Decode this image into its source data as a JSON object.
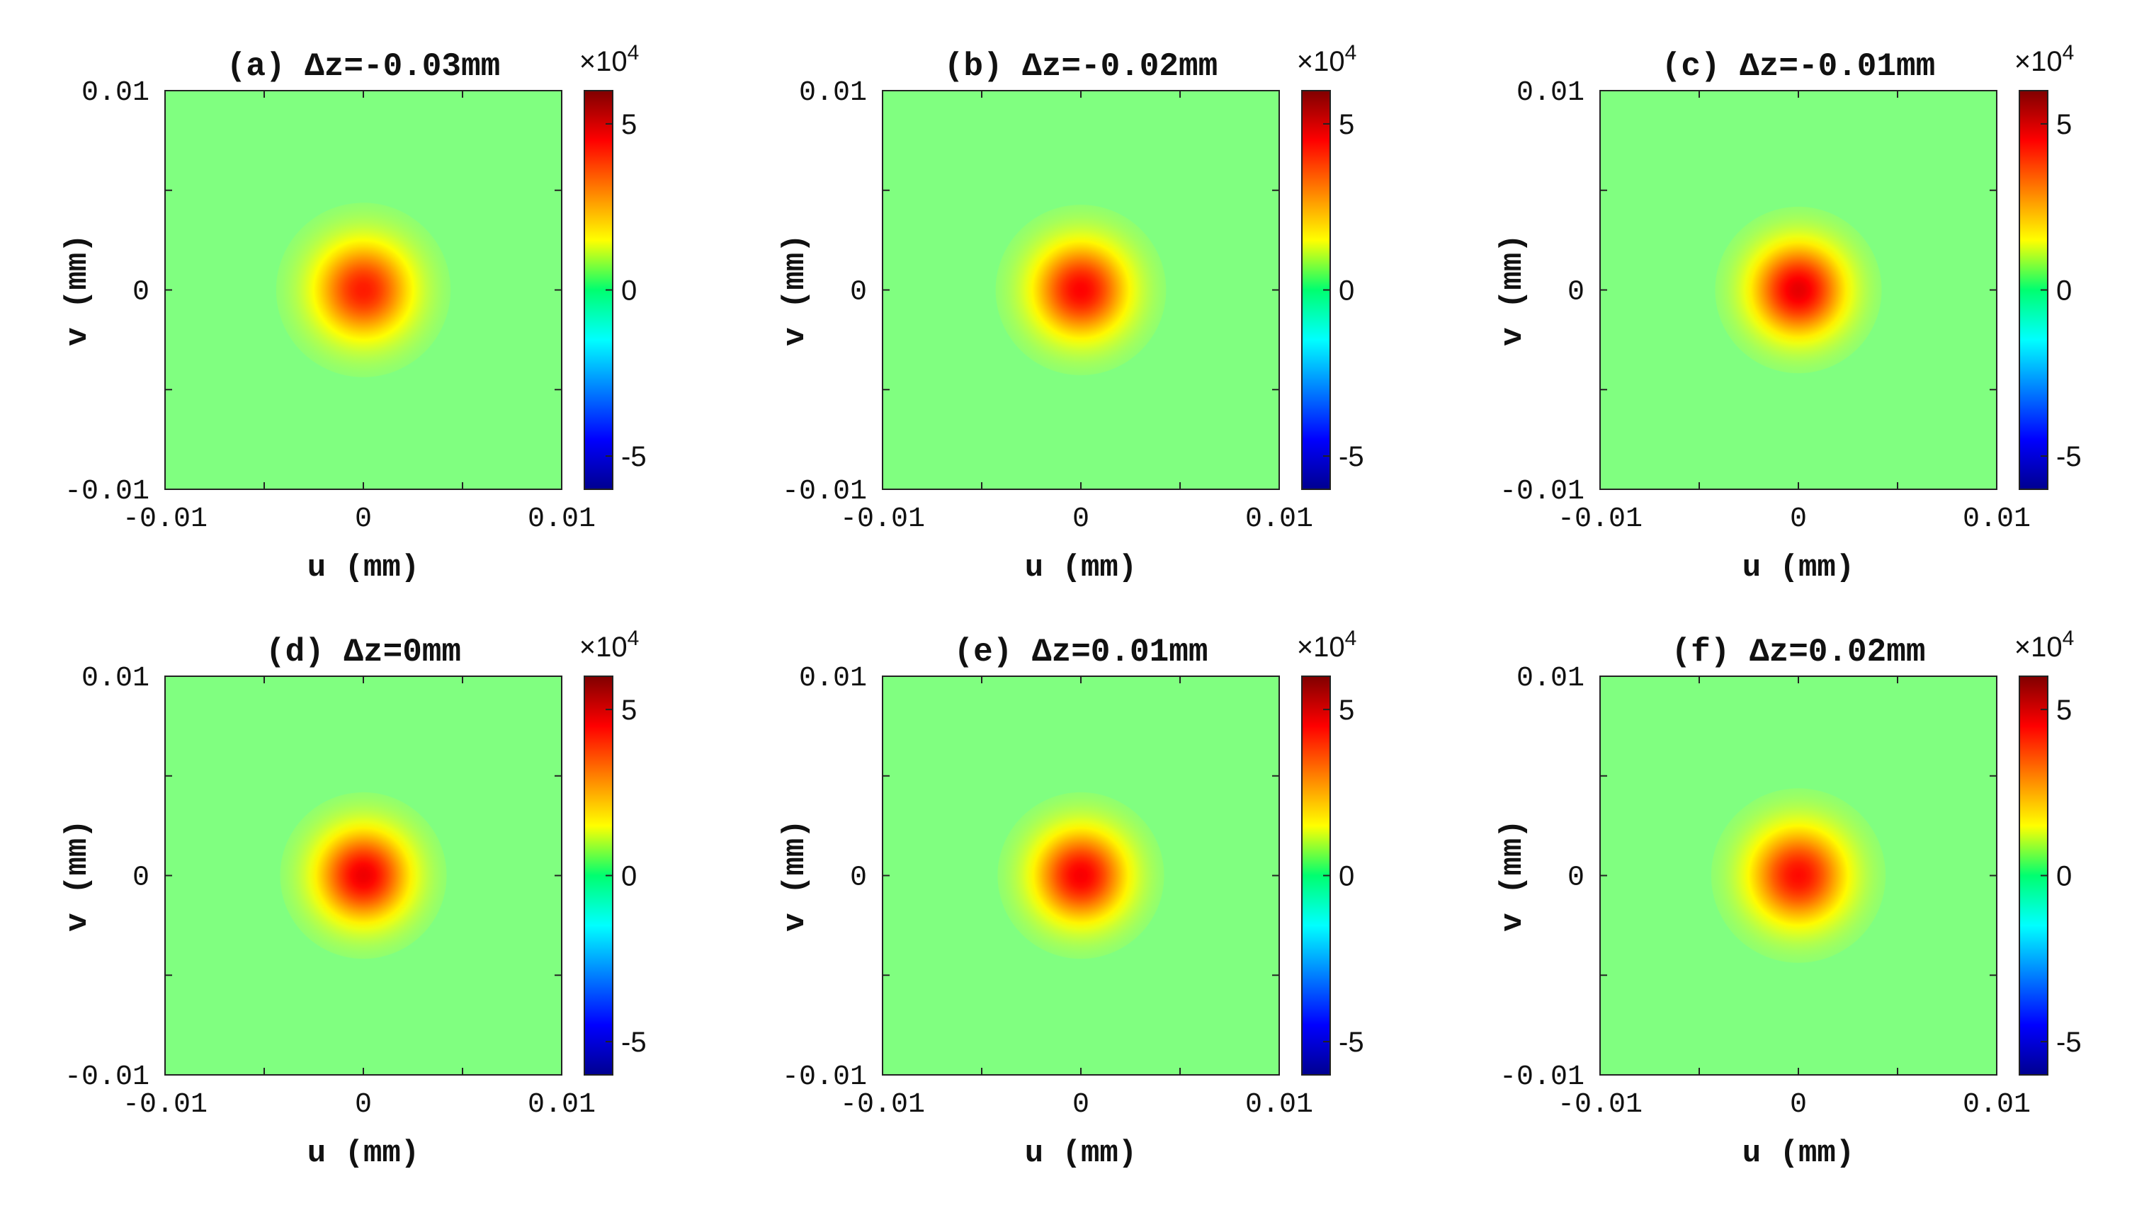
{
  "colorbar_exponent": {
    "times": "×10",
    "power": "4"
  },
  "chart_data": [
    {
      "type": "heatmap",
      "title": "(a) Δz=-0.03mm",
      "xlabel": "u (mm)",
      "ylabel": "v (mm)",
      "xlim": [
        -0.01,
        0.01
      ],
      "ylim": [
        -0.01,
        0.01
      ],
      "xticks": [
        "-0.01",
        "0",
        "0.01"
      ],
      "yticks": [
        "-0.01",
        "0",
        "0.01"
      ],
      "clim": [
        -60000,
        60000
      ],
      "cticks": [
        "-5",
        "0",
        "5"
      ],
      "colormap": "jet",
      "background_value": 0,
      "peak_value": 42000,
      "spot_center": [
        0,
        0
      ],
      "spot_radius": 0.0044
    },
    {
      "type": "heatmap",
      "title": "(b) Δz=-0.02mm",
      "xlabel": "u (mm)",
      "ylabel": "v (mm)",
      "xlim": [
        -0.01,
        0.01
      ],
      "ylim": [
        -0.01,
        0.01
      ],
      "xticks": [
        "-0.01",
        "0",
        "0.01"
      ],
      "yticks": [
        "-0.01",
        "0",
        "0.01"
      ],
      "clim": [
        -60000,
        60000
      ],
      "cticks": [
        "-5",
        "0",
        "5"
      ],
      "colormap": "jet",
      "background_value": 0,
      "peak_value": 45000,
      "spot_center": [
        0,
        0
      ],
      "spot_radius": 0.0043
    },
    {
      "type": "heatmap",
      "title": "(c) Δz=-0.01mm",
      "xlabel": "u (mm)",
      "ylabel": "v (mm)",
      "xlim": [
        -0.01,
        0.01
      ],
      "ylim": [
        -0.01,
        0.01
      ],
      "xticks": [
        "-0.01",
        "0",
        "0.01"
      ],
      "yticks": [
        "-0.01",
        "0",
        "0.01"
      ],
      "clim": [
        -60000,
        60000
      ],
      "cticks": [
        "-5",
        "0",
        "5"
      ],
      "colormap": "jet",
      "background_value": 0,
      "peak_value": 48000,
      "spot_center": [
        0,
        0
      ],
      "spot_radius": 0.0042
    },
    {
      "type": "heatmap",
      "title": "(d) Δz=0mm",
      "xlabel": "u (mm)",
      "ylabel": "v (mm)",
      "xlim": [
        -0.01,
        0.01
      ],
      "ylim": [
        -0.01,
        0.01
      ],
      "xticks": [
        "-0.01",
        "0",
        "0.01"
      ],
      "yticks": [
        "-0.01",
        "0",
        "0.01"
      ],
      "clim": [
        -60000,
        60000
      ],
      "cticks": [
        "-5",
        "0",
        "5"
      ],
      "colormap": "jet",
      "background_value": 0,
      "peak_value": 47000,
      "spot_center": [
        0,
        0
      ],
      "spot_radius": 0.0042
    },
    {
      "type": "heatmap",
      "title": "(e) Δz=0.01mm",
      "xlabel": "u (mm)",
      "ylabel": "v (mm)",
      "xlim": [
        -0.01,
        0.01
      ],
      "ylim": [
        -0.01,
        0.01
      ],
      "xticks": [
        "-0.01",
        "0",
        "0.01"
      ],
      "yticks": [
        "-0.01",
        "0",
        "0.01"
      ],
      "clim": [
        -60000,
        60000
      ],
      "cticks": [
        "-5",
        "0",
        "5"
      ],
      "colormap": "jet",
      "background_value": 0,
      "peak_value": 46000,
      "spot_center": [
        0,
        0
      ],
      "spot_radius": 0.0042
    },
    {
      "type": "heatmap",
      "title": "(f) Δz=0.02mm",
      "xlabel": "u (mm)",
      "ylabel": "v (mm)",
      "xlim": [
        -0.01,
        0.01
      ],
      "ylim": [
        -0.01,
        0.01
      ],
      "xticks": [
        "-0.01",
        "0",
        "0.01"
      ],
      "yticks": [
        "-0.01",
        "0",
        "0.01"
      ],
      "clim": [
        -60000,
        60000
      ],
      "cticks": [
        "-5",
        "0",
        "5"
      ],
      "colormap": "jet",
      "background_value": 0,
      "peak_value": 44000,
      "spot_center": [
        0,
        0
      ],
      "spot_radius": 0.0044
    }
  ]
}
